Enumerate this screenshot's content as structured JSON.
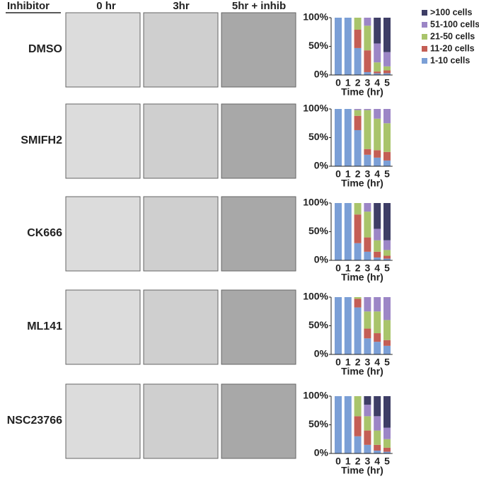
{
  "header": {
    "label": "Inhibitor",
    "columns": [
      "0 hr",
      "3hr",
      "5hr + inhib"
    ]
  },
  "chart_data": [
    {
      "type": "bar",
      "stacked": true,
      "title": "DMSO",
      "x_label": "Time (hr)",
      "legend": "right",
      "categories": [
        "0",
        "1",
        "2",
        "3",
        "4",
        "5"
      ],
      "ylim": [
        0,
        100
      ],
      "yticks": [
        {
          "value": 0,
          "label": "0%"
        },
        {
          "value": 50,
          "label": "50%"
        },
        {
          "value": 100,
          "label": "100%"
        }
      ],
      "series": [
        {
          "name": "1-10 cells",
          "color": "#7b9fd6",
          "values": [
            100,
            100,
            47,
            5,
            3,
            3
          ]
        },
        {
          "name": "11-20 cells",
          "color": "#c45e55",
          "values": [
            0,
            0,
            32,
            38,
            3,
            5
          ]
        },
        {
          "name": "21-50 cells",
          "color": "#a9c46b",
          "values": [
            0,
            0,
            21,
            43,
            16,
            7
          ]
        },
        {
          "name": "51-100 cells",
          "color": "#9c86c6",
          "values": [
            0,
            0,
            0,
            14,
            33,
            25
          ]
        },
        {
          "name": ">100 cells",
          "color": "#3e3e66",
          "values": [
            0,
            0,
            0,
            0,
            45,
            60
          ]
        }
      ]
    },
    {
      "type": "bar",
      "stacked": true,
      "title": "SMIFH2",
      "x_label": "Time (hr)",
      "categories": [
        "0",
        "1",
        "2",
        "3",
        "4",
        "5"
      ],
      "ylim": [
        0,
        100
      ],
      "yticks": [
        {
          "value": 0,
          "label": "0%"
        },
        {
          "value": 50,
          "label": "50%"
        },
        {
          "value": 100,
          "label": "100%"
        }
      ],
      "series": [
        {
          "color": "#7b9fd6",
          "values": [
            100,
            100,
            63,
            20,
            15,
            10
          ]
        },
        {
          "color": "#c45e55",
          "values": [
            0,
            0,
            25,
            10,
            13,
            15
          ]
        },
        {
          "color": "#a9c46b",
          "values": [
            0,
            0,
            10,
            68,
            55,
            50
          ]
        },
        {
          "color": "#9c86c6",
          "values": [
            0,
            0,
            2,
            2,
            17,
            25
          ]
        },
        {
          "color": "#3e3e66",
          "values": [
            0,
            0,
            0,
            0,
            0,
            0
          ]
        }
      ]
    },
    {
      "type": "bar",
      "stacked": true,
      "title": "CK666",
      "x_label": "Time (hr)",
      "categories": [
        "0",
        "1",
        "2",
        "3",
        "4",
        "5"
      ],
      "ylim": [
        0,
        100
      ],
      "yticks": [
        {
          "value": 0,
          "label": "0%"
        },
        {
          "value": 50,
          "label": "50%"
        },
        {
          "value": 100,
          "label": "100%"
        }
      ],
      "series": [
        {
          "color": "#7b9fd6",
          "values": [
            100,
            100,
            30,
            15,
            5,
            3
          ]
        },
        {
          "color": "#c45e55",
          "values": [
            0,
            0,
            50,
            25,
            10,
            5
          ]
        },
        {
          "color": "#a9c46b",
          "values": [
            0,
            0,
            20,
            45,
            20,
            10
          ]
        },
        {
          "color": "#9c86c6",
          "values": [
            0,
            0,
            0,
            15,
            20,
            17
          ]
        },
        {
          "color": "#3e3e66",
          "values": [
            0,
            0,
            0,
            0,
            45,
            65
          ]
        }
      ]
    },
    {
      "type": "bar",
      "stacked": true,
      "title": "ML141",
      "x_label": "Time (hr)",
      "categories": [
        "0",
        "1",
        "2",
        "3",
        "4",
        "5"
      ],
      "ylim": [
        0,
        100
      ],
      "yticks": [
        {
          "value": 0,
          "label": "0%"
        },
        {
          "value": 50,
          "label": "50%"
        },
        {
          "value": 100,
          "label": "100%"
        }
      ],
      "series": [
        {
          "color": "#7b9fd6",
          "values": [
            100,
            100,
            82,
            28,
            22,
            15
          ]
        },
        {
          "color": "#c45e55",
          "values": [
            0,
            0,
            15,
            17,
            15,
            10
          ]
        },
        {
          "color": "#a9c46b",
          "values": [
            0,
            0,
            3,
            30,
            38,
            35
          ]
        },
        {
          "color": "#9c86c6",
          "values": [
            0,
            0,
            0,
            25,
            25,
            40
          ]
        },
        {
          "color": "#3e3e66",
          "values": [
            0,
            0,
            0,
            0,
            0,
            0
          ]
        }
      ]
    },
    {
      "type": "bar",
      "stacked": true,
      "title": "NSC23766",
      "x_label": "Time (hr)",
      "categories": [
        "0",
        "1",
        "2",
        "3",
        "4",
        "5"
      ],
      "ylim": [
        0,
        100
      ],
      "yticks": [
        {
          "value": 0,
          "label": "0%"
        },
        {
          "value": 50,
          "label": "50%"
        },
        {
          "value": 100,
          "label": "100%"
        }
      ],
      "series": [
        {
          "color": "#7b9fd6",
          "values": [
            100,
            100,
            30,
            15,
            5,
            3
          ]
        },
        {
          "color": "#c45e55",
          "values": [
            0,
            0,
            35,
            25,
            10,
            7
          ]
        },
        {
          "color": "#a9c46b",
          "values": [
            0,
            0,
            35,
            25,
            25,
            15
          ]
        },
        {
          "color": "#9c86c6",
          "values": [
            0,
            0,
            0,
            20,
            25,
            20
          ]
        },
        {
          "color": "#3e3e66",
          "values": [
            0,
            0,
            0,
            15,
            35,
            55
          ]
        }
      ]
    }
  ]
}
